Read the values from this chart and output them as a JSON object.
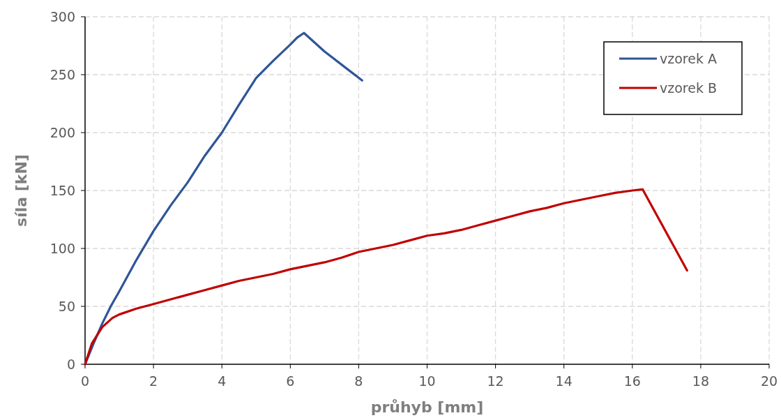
{
  "chart_data": {
    "type": "line",
    "xlabel": "průhyb [mm]",
    "ylabel": "síla [kN]",
    "xlim": [
      0,
      20
    ],
    "xticks": [
      0,
      2,
      4,
      6,
      8,
      10,
      12,
      14,
      16,
      18,
      20
    ],
    "ylim": [
      0,
      300
    ],
    "yticks": [
      0,
      50,
      100,
      150,
      200,
      250,
      300
    ],
    "grid": true,
    "legend": "top right",
    "marker": "none",
    "line_style": "solid",
    "series": [
      {
        "name": "vzorek A",
        "color": "#2f5597",
        "x": [
          0,
          0.25,
          0.5,
          0.75,
          1,
          1.5,
          2,
          2.5,
          3,
          3.5,
          4,
          4.5,
          5,
          5.5,
          6,
          6.2,
          6.4,
          7,
          8.1
        ],
        "values": [
          0,
          18,
          35,
          50,
          63,
          90,
          115,
          137,
          157,
          180,
          200,
          224,
          247,
          262,
          276,
          282,
          286,
          270,
          245
        ]
      },
      {
        "name": "vzorek B",
        "color": "#c00000",
        "x": [
          0,
          0.2,
          0.5,
          0.8,
          1,
          1.5,
          2,
          2.5,
          3,
          3.5,
          4,
          4.5,
          5,
          5.5,
          6,
          6.5,
          7,
          7.5,
          8,
          8.5,
          9,
          9.5,
          10,
          10.5,
          11,
          11.5,
          12,
          12.5,
          13,
          13.5,
          14,
          14.5,
          15,
          15.5,
          16,
          16.3,
          17.6
        ],
        "values": [
          0,
          18,
          32,
          40,
          43,
          48,
          52,
          56,
          60,
          64,
          68,
          72,
          75,
          78,
          82,
          85,
          88,
          92,
          97,
          100,
          103,
          107,
          111,
          113,
          116,
          120,
          124,
          128,
          132,
          135,
          139,
          142,
          145,
          148,
          150,
          151,
          81
        ]
      }
    ]
  }
}
